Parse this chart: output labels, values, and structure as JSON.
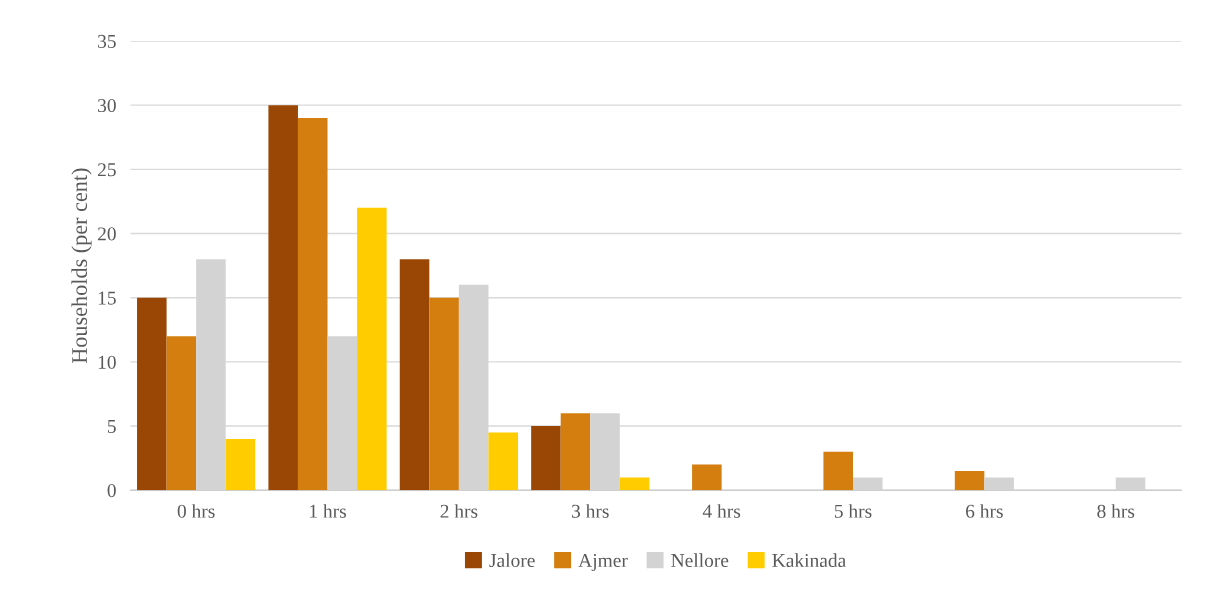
{
  "chart_data": {
    "type": "bar",
    "ylabel": "Households (per cent)",
    "categories": [
      "0 hrs",
      "1 hrs",
      "2 hrs",
      "3 hrs",
      "4 hrs",
      "5 hrs",
      "6 hrs",
      "8 hrs"
    ],
    "series": [
      {
        "name": "Jalore",
        "color": "#9a4706",
        "values": [
          15,
          30,
          18,
          5,
          0,
          0,
          0,
          0
        ]
      },
      {
        "name": "Ajmer",
        "color": "#d37e0e",
        "values": [
          12,
          29,
          15,
          6,
          2,
          3,
          1.5,
          0
        ]
      },
      {
        "name": "Nellore",
        "color": "#d3d3d3",
        "values": [
          18,
          12,
          16,
          6,
          0,
          1,
          1,
          1
        ]
      },
      {
        "name": "Kakinada",
        "color": "#ffcc00",
        "values": [
          4,
          22,
          4.5,
          1,
          0,
          0,
          0,
          0
        ]
      }
    ],
    "ylim": [
      0,
      35
    ],
    "yticks": [
      0,
      5,
      10,
      15,
      20,
      25,
      30,
      35
    ],
    "grid": "y",
    "legend": "bottom"
  }
}
